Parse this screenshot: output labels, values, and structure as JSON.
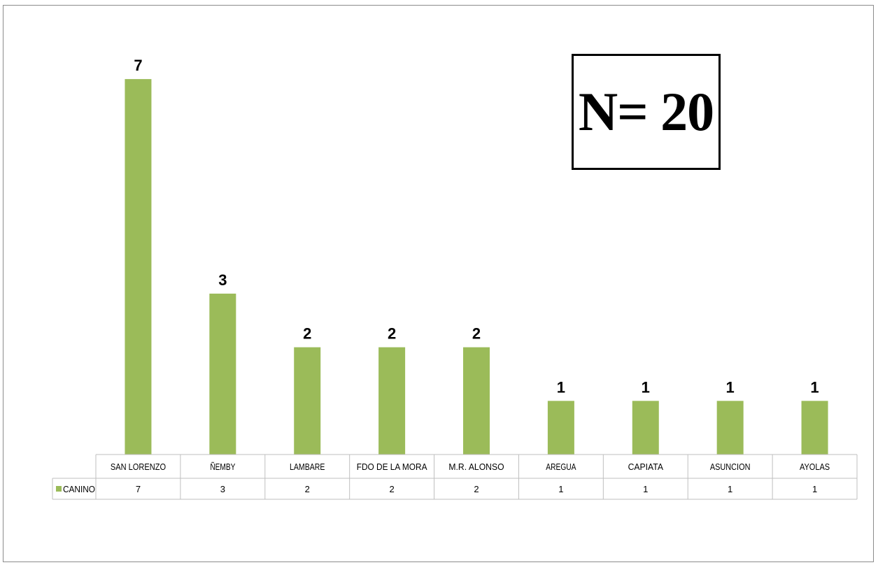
{
  "n_label": "N= 20",
  "colors": {
    "bar": "#9bbb59",
    "grid": "#bfbfbf",
    "text": "#000000"
  },
  "chart_data": {
    "type": "bar",
    "categories": [
      "SAN LORENZO",
      "ÑEMBY",
      "LAMBARE",
      "FDO DE LA MORA",
      "M.R. ALONSO",
      "AREGUA",
      "CAPIATA",
      "ASUNCION",
      "AYOLAS"
    ],
    "series": [
      {
        "name": "CANINO",
        "values": [
          7,
          3,
          2,
          2,
          2,
          1,
          1,
          1,
          1
        ]
      }
    ],
    "data_labels": [
      "7",
      "3",
      "2",
      "2",
      "2",
      "1",
      "1",
      "1",
      "1"
    ],
    "ylim": [
      0,
      7
    ],
    "title": "",
    "xlabel": "",
    "ylabel": "",
    "grid": false,
    "legend": "data-table"
  }
}
